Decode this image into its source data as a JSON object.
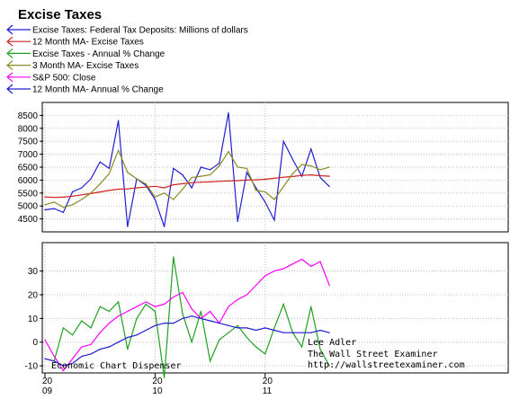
{
  "chart_data": {
    "type": "line",
    "title": "Excise Taxes",
    "legend_placement": "top-left",
    "panels": [
      {
        "name": "upper",
        "ylim": [
          4000,
          9000
        ],
        "yticks": [
          "4500",
          "5000",
          "5500",
          "6000",
          "6500",
          "7000",
          "7500",
          "8000",
          "8500"
        ],
        "series": [
          {
            "name": "Excise Taxes: Federal Tax Deposits: Millions of dollars",
            "color": "#1f1fd0",
            "role": "left-axis",
            "x": [
              "2009-01",
              "2009-02",
              "2009-03",
              "2009-04",
              "2009-05",
              "2009-06",
              "2009-07",
              "2009-08",
              "2009-09",
              "2009-10",
              "2009-11",
              "2009-12",
              "2010-01",
              "2010-02",
              "2010-03",
              "2010-04",
              "2010-05",
              "2010-06",
              "2010-07",
              "2010-08",
              "2010-09",
              "2010-10",
              "2010-11",
              "2010-12",
              "2011-01",
              "2011-02",
              "2011-03",
              "2011-04",
              "2011-05",
              "2011-06",
              "2011-07",
              "2011-08"
            ],
            "values": [
              4850,
              4900,
              4750,
              5550,
              5700,
              6050,
              6700,
              6450,
              8300,
              4200,
              6050,
              5800,
              5250,
              4200,
              6450,
              6200,
              5700,
              6500,
              6400,
              6650,
              8600,
              4400,
              6300,
              5700,
              5150,
              4450,
              7500,
              6800,
              6150,
              7200,
              6100,
              5750
            ]
          },
          {
            "name": "12 Month MA- Excise Taxes",
            "color": "#d02020",
            "role": "left-axis",
            "x": [
              "2009-01",
              "2009-02",
              "2009-03",
              "2009-04",
              "2009-05",
              "2009-06",
              "2009-07",
              "2009-08",
              "2009-09",
              "2009-10",
              "2009-11",
              "2009-12",
              "2010-01",
              "2010-02",
              "2010-03",
              "2010-04",
              "2010-05",
              "2010-06",
              "2010-07",
              "2010-08",
              "2010-09",
              "2010-10",
              "2010-11",
              "2010-12",
              "2011-01",
              "2011-02",
              "2011-03",
              "2011-04",
              "2011-05",
              "2011-06",
              "2011-07",
              "2011-08"
            ],
            "values": [
              5350,
              5330,
              5340,
              5380,
              5430,
              5480,
              5540,
              5600,
              5650,
              5660,
              5700,
              5730,
              5760,
              5700,
              5820,
              5860,
              5900,
              5920,
              5930,
              5950,
              5970,
              5980,
              6000,
              6010,
              6030,
              6070,
              6110,
              6140,
              6180,
              6200,
              6170,
              6150
            ]
          },
          {
            "name": "3 Month MA- Excise Taxes",
            "color": "#8a8a22",
            "role": "left-axis",
            "x": [
              "2009-01",
              "2009-02",
              "2009-03",
              "2009-04",
              "2009-05",
              "2009-06",
              "2009-07",
              "2009-08",
              "2009-09",
              "2009-10",
              "2009-11",
              "2009-12",
              "2010-01",
              "2010-02",
              "2010-03",
              "2010-04",
              "2010-05",
              "2010-06",
              "2010-07",
              "2010-08",
              "2010-09",
              "2010-10",
              "2010-11",
              "2010-12",
              "2011-01",
              "2011-02",
              "2011-03",
              "2011-04",
              "2011-05",
              "2011-06",
              "2011-07",
              "2011-08"
            ],
            "values": [
              5050,
              5150,
              4950,
              5050,
              5250,
              5500,
              5850,
              6250,
              7150,
              6300,
              6050,
              5850,
              5350,
              5500,
              5250,
              5650,
              6100,
              6150,
              6200,
              6550,
              7100,
              6500,
              6450,
              5600,
              5550,
              5250,
              5750,
              6250,
              6600,
              6550,
              6400,
              6500
            ]
          }
        ]
      },
      {
        "name": "lower",
        "ylim": [
          -13,
          42
        ],
        "yticks": [
          "-10",
          "0",
          "10",
          "20",
          "30"
        ],
        "series": [
          {
            "name": "Excise Taxes - Annual % Change",
            "color": "#20a020",
            "role": "left-axis",
            "x": [
              "2009-01",
              "2009-02",
              "2009-03",
              "2009-04",
              "2009-05",
              "2009-06",
              "2009-07",
              "2009-08",
              "2009-09",
              "2009-10",
              "2009-11",
              "2009-12",
              "2010-01",
              "2010-02",
              "2010-03",
              "2010-04",
              "2010-05",
              "2010-06",
              "2010-07",
              "2010-08",
              "2010-09",
              "2010-10",
              "2010-11",
              "2010-12",
              "2011-01",
              "2011-02",
              "2011-03",
              "2011-04",
              "2011-05",
              "2011-06",
              "2011-07",
              "2011-08"
            ],
            "values": [
              -7,
              -8,
              6,
              3,
              9,
              6,
              15,
              13,
              17,
              -3,
              10,
              16,
              13,
              -15,
              36,
              12,
              0,
              13,
              -8,
              1,
              4,
              7,
              2,
              -2,
              -5,
              6,
              16,
              4,
              -2,
              15,
              -3,
              -10
            ]
          },
          {
            "name": "S&P 500: Close",
            "color": "#ff00ff",
            "role": "right-axis",
            "x": [
              "2009-01",
              "2009-02",
              "2009-03",
              "2009-04",
              "2009-05",
              "2009-06",
              "2009-07",
              "2009-08",
              "2009-09",
              "2009-10",
              "2009-11",
              "2009-12",
              "2010-01",
              "2010-02",
              "2010-03",
              "2010-04",
              "2010-05",
              "2010-06",
              "2010-07",
              "2010-08",
              "2010-09",
              "2010-10",
              "2010-11",
              "2010-12",
              "2011-01",
              "2011-02",
              "2011-03",
              "2011-04",
              "2011-05",
              "2011-06",
              "2011-07",
              "2011-08"
            ],
            "values": [
              1,
              -6,
              -12,
              -7,
              -2,
              -1,
              4,
              8,
              11,
              13,
              15,
              17,
              15,
              16,
              19,
              21,
              14,
              10,
              13,
              8,
              15,
              18,
              20,
              24,
              28,
              30,
              31,
              33,
              35,
              32,
              34,
              24
            ]
          },
          {
            "name": "12 Month MA- Annual % Change",
            "color": "#1f1fd0",
            "role": "left-axis",
            "x": [
              "2009-01",
              "2009-02",
              "2009-03",
              "2009-04",
              "2009-05",
              "2009-06",
              "2009-07",
              "2009-08",
              "2009-09",
              "2009-10",
              "2009-11",
              "2009-12",
              "2010-01",
              "2010-02",
              "2010-03",
              "2010-04",
              "2010-05",
              "2010-06",
              "2010-07",
              "2010-08",
              "2010-09",
              "2010-10",
              "2010-11",
              "2010-12",
              "2011-01",
              "2011-02",
              "2011-03",
              "2011-04",
              "2011-05",
              "2011-06",
              "2011-07",
              "2011-08"
            ],
            "values": [
              -7,
              -8,
              -10,
              -9,
              -6,
              -5,
              -3,
              -2,
              0,
              2,
              3,
              5,
              7,
              8,
              8,
              10,
              11,
              10,
              9,
              8,
              7,
              6,
              6,
              5,
              6,
              5,
              4,
              4,
              4,
              4,
              5,
              4
            ]
          }
        ]
      }
    ],
    "x_ticks": [
      {
        "top": "20",
        "bottom": "09"
      },
      {
        "top": "20",
        "bottom": "10"
      },
      {
        "top": "20",
        "bottom": "11"
      }
    ],
    "annotations": {
      "source": "Economic Chart Dispenser",
      "author": "Lee Adler",
      "publication": "The Wall Street Examiner",
      "url": "http://wallstreetexaminer.com"
    }
  }
}
